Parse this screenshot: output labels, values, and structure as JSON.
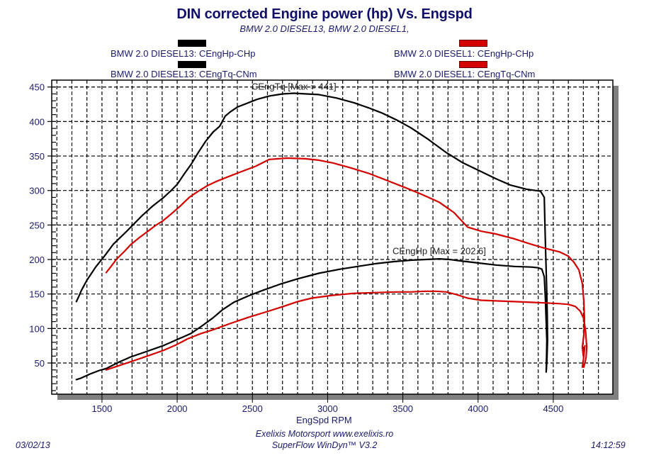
{
  "header": {
    "title": "DIN corrected Engine power (hp) Vs. Engspd",
    "subtitle": "BMW 2.0 DIESEL13, BMW 2.0 DIESEL1,"
  },
  "legend": [
    {
      "label": "BMW 2.0 DIESEL13: CEngHp-CHp",
      "color": "#000000"
    },
    {
      "label": "BMW 2.0 DIESEL13: CEngTq-CNm",
      "color": "#000000"
    },
    {
      "label": "BMW 2.0 DIESEL1: CEngHp-CHp",
      "color": "#d40000"
    },
    {
      "label": "BMW 2.0 DIESEL1: CEngTq-CNm",
      "color": "#d40000"
    }
  ],
  "footer": {
    "date": "03/02/13",
    "time": "14:12:59",
    "line1": "Exelixis Motorsport www.exelixis.ro",
    "line2": "SuperFlow WinDyn™ V3.2"
  },
  "chart_data": {
    "type": "line",
    "title": "DIN corrected Engine power (hp) Vs. Engspd",
    "subtitle": "BMW 2.0 DIESEL13, BMW 2.0 DIESEL1,",
    "xlabel": "EngSpd RPM",
    "ylabel": "",
    "xlim": [
      1166,
      4896
    ],
    "ylim": [
      4.8,
      460
    ],
    "x_ticks": [
      1500,
      2000,
      2500,
      3000,
      3500,
      4000,
      4500
    ],
    "y_ticks": [
      50,
      100,
      150,
      200,
      250,
      300,
      350,
      400,
      450
    ],
    "x_grid_step": 100,
    "y_grid_step": 50,
    "y_minor_step": 10,
    "grid": true,
    "legend_position": "top",
    "annotations": [
      {
        "text": "CEngTq [Max = 441]",
        "x": 2776,
        "y": 441
      },
      {
        "text": "CEngHp [Max = 202.6]",
        "x": 3742,
        "y": 202.6
      }
    ],
    "series": [
      {
        "name": "BMW 2.0 DIESEL13: CEngTq-CNm",
        "color": "#000000",
        "points": [
          [
            1330,
            139
          ],
          [
            1345,
            146
          ],
          [
            1363,
            155
          ],
          [
            1400,
            170
          ],
          [
            1458,
            189
          ],
          [
            1520,
            206
          ],
          [
            1575,
            222
          ],
          [
            1660,
            240
          ],
          [
            1764,
            263
          ],
          [
            1840,
            278
          ],
          [
            1905,
            289
          ],
          [
            1960,
            300
          ],
          [
            2000,
            309
          ],
          [
            2050,
            325
          ],
          [
            2093,
            338
          ],
          [
            2140,
            355
          ],
          [
            2188,
            371
          ],
          [
            2240,
            385
          ],
          [
            2282,
            393
          ],
          [
            2320,
            408
          ],
          [
            2353,
            414
          ],
          [
            2400,
            421
          ],
          [
            2447,
            425
          ],
          [
            2530,
            432
          ],
          [
            2612,
            437
          ],
          [
            2700,
            440
          ],
          [
            2776,
            441
          ],
          [
            2860,
            440
          ],
          [
            2941,
            439
          ],
          [
            3060,
            434
          ],
          [
            3177,
            427
          ],
          [
            3270,
            420
          ],
          [
            3365,
            412
          ],
          [
            3460,
            402
          ],
          [
            3553,
            391
          ],
          [
            3670,
            374
          ],
          [
            3789,
            355
          ],
          [
            3900,
            340
          ],
          [
            4024,
            327
          ],
          [
            4120,
            317
          ],
          [
            4213,
            308
          ],
          [
            4320,
            302
          ],
          [
            4415,
            299
          ],
          [
            4440,
            290
          ],
          [
            4445,
            247
          ],
          [
            4450,
            205
          ],
          [
            4455,
            165
          ],
          [
            4460,
            120
          ],
          [
            4462,
            83
          ],
          [
            4458,
            55
          ],
          [
            4453,
            37
          ]
        ]
      },
      {
        "name": "BMW 2.0 DIESEL1: CEngTq-CNm",
        "color": "#d40000",
        "points": [
          [
            1528,
            181
          ],
          [
            1560,
            190
          ],
          [
            1599,
            201
          ],
          [
            1650,
            212
          ],
          [
            1693,
            222
          ],
          [
            1750,
            232
          ],
          [
            1811,
            242
          ],
          [
            1860,
            250
          ],
          [
            1905,
            256
          ],
          [
            1960,
            266
          ],
          [
            2023,
            278
          ],
          [
            2080,
            290
          ],
          [
            2140,
            299
          ],
          [
            2200,
            307
          ],
          [
            2258,
            313
          ],
          [
            2340,
            320
          ],
          [
            2423,
            327
          ],
          [
            2520,
            335
          ],
          [
            2612,
            345
          ],
          [
            2730,
            347
          ],
          [
            2850,
            346
          ],
          [
            2940,
            344
          ],
          [
            3035,
            340
          ],
          [
            3150,
            333
          ],
          [
            3271,
            325
          ],
          [
            3390,
            315
          ],
          [
            3506,
            305
          ],
          [
            3620,
            295
          ],
          [
            3742,
            283
          ],
          [
            3840,
            268
          ],
          [
            3930,
            247
          ],
          [
            4020,
            241
          ],
          [
            4118,
            237
          ],
          [
            4240,
            230
          ],
          [
            4354,
            222
          ],
          [
            4450,
            216
          ],
          [
            4542,
            211
          ],
          [
            4600,
            205
          ],
          [
            4637,
            196
          ],
          [
            4670,
            185
          ],
          [
            4693,
            165
          ],
          [
            4703,
            140
          ],
          [
            4707,
            114
          ],
          [
            4703,
            90
          ],
          [
            4693,
            73
          ],
          [
            4700,
            60
          ],
          [
            4710,
            75
          ],
          [
            4700,
            55
          ],
          [
            4693,
            44
          ]
        ]
      },
      {
        "name": "BMW 2.0 DIESEL13: CEngHp-CHp",
        "color": "#000000",
        "points": [
          [
            1330,
            26
          ],
          [
            1360,
            28
          ],
          [
            1420,
            34
          ],
          [
            1480,
            39
          ],
          [
            1528,
            42
          ],
          [
            1610,
            51
          ],
          [
            1693,
            59
          ],
          [
            1800,
            67
          ],
          [
            1905,
            75
          ],
          [
            2000,
            84
          ],
          [
            2093,
            93
          ],
          [
            2160,
            103
          ],
          [
            2235,
            115
          ],
          [
            2300,
            127
          ],
          [
            2376,
            138
          ],
          [
            2470,
            147
          ],
          [
            2565,
            155
          ],
          [
            2680,
            164
          ],
          [
            2800,
            172
          ],
          [
            2940,
            180
          ],
          [
            3082,
            186
          ],
          [
            3200,
            190
          ],
          [
            3318,
            194
          ],
          [
            3440,
            197
          ],
          [
            3553,
            199
          ],
          [
            3650,
            200
          ],
          [
            3742,
            201
          ],
          [
            3810,
            200
          ],
          [
            3883,
            198
          ],
          [
            4000,
            195
          ],
          [
            4118,
            192
          ],
          [
            4240,
            190
          ],
          [
            4354,
            189
          ],
          [
            4400,
            188
          ],
          [
            4424,
            186
          ],
          [
            4440,
            175
          ],
          [
            4447,
            145
          ],
          [
            4452,
            115
          ],
          [
            4457,
            83
          ],
          [
            4455,
            60
          ],
          [
            4453,
            37
          ]
        ]
      },
      {
        "name": "BMW 2.0 DIESEL1: CEngHp-CHp",
        "color": "#d40000",
        "points": [
          [
            1528,
            40
          ],
          [
            1610,
            46
          ],
          [
            1693,
            52
          ],
          [
            1800,
            60
          ],
          [
            1905,
            68
          ],
          [
            1990,
            76
          ],
          [
            2070,
            85
          ],
          [
            2150,
            92
          ],
          [
            2235,
            98
          ],
          [
            2350,
            107
          ],
          [
            2470,
            116
          ],
          [
            2590,
            124
          ],
          [
            2706,
            132
          ],
          [
            2800,
            139
          ],
          [
            2894,
            144
          ],
          [
            3030,
            148
          ],
          [
            3177,
            151
          ],
          [
            3320,
            152
          ],
          [
            3459,
            153
          ],
          [
            3550,
            153
          ],
          [
            3648,
            154
          ],
          [
            3720,
            154
          ],
          [
            3789,
            153
          ],
          [
            3860,
            149
          ],
          [
            3930,
            144
          ],
          [
            4020,
            141
          ],
          [
            4118,
            140
          ],
          [
            4240,
            139
          ],
          [
            4354,
            138
          ],
          [
            4450,
            137
          ],
          [
            4542,
            136
          ],
          [
            4600,
            135
          ],
          [
            4646,
            132
          ],
          [
            4680,
            125
          ],
          [
            4703,
            114
          ],
          [
            4715,
            95
          ],
          [
            4722,
            73
          ],
          [
            4718,
            58
          ],
          [
            4703,
            44
          ]
        ]
      }
    ]
  }
}
